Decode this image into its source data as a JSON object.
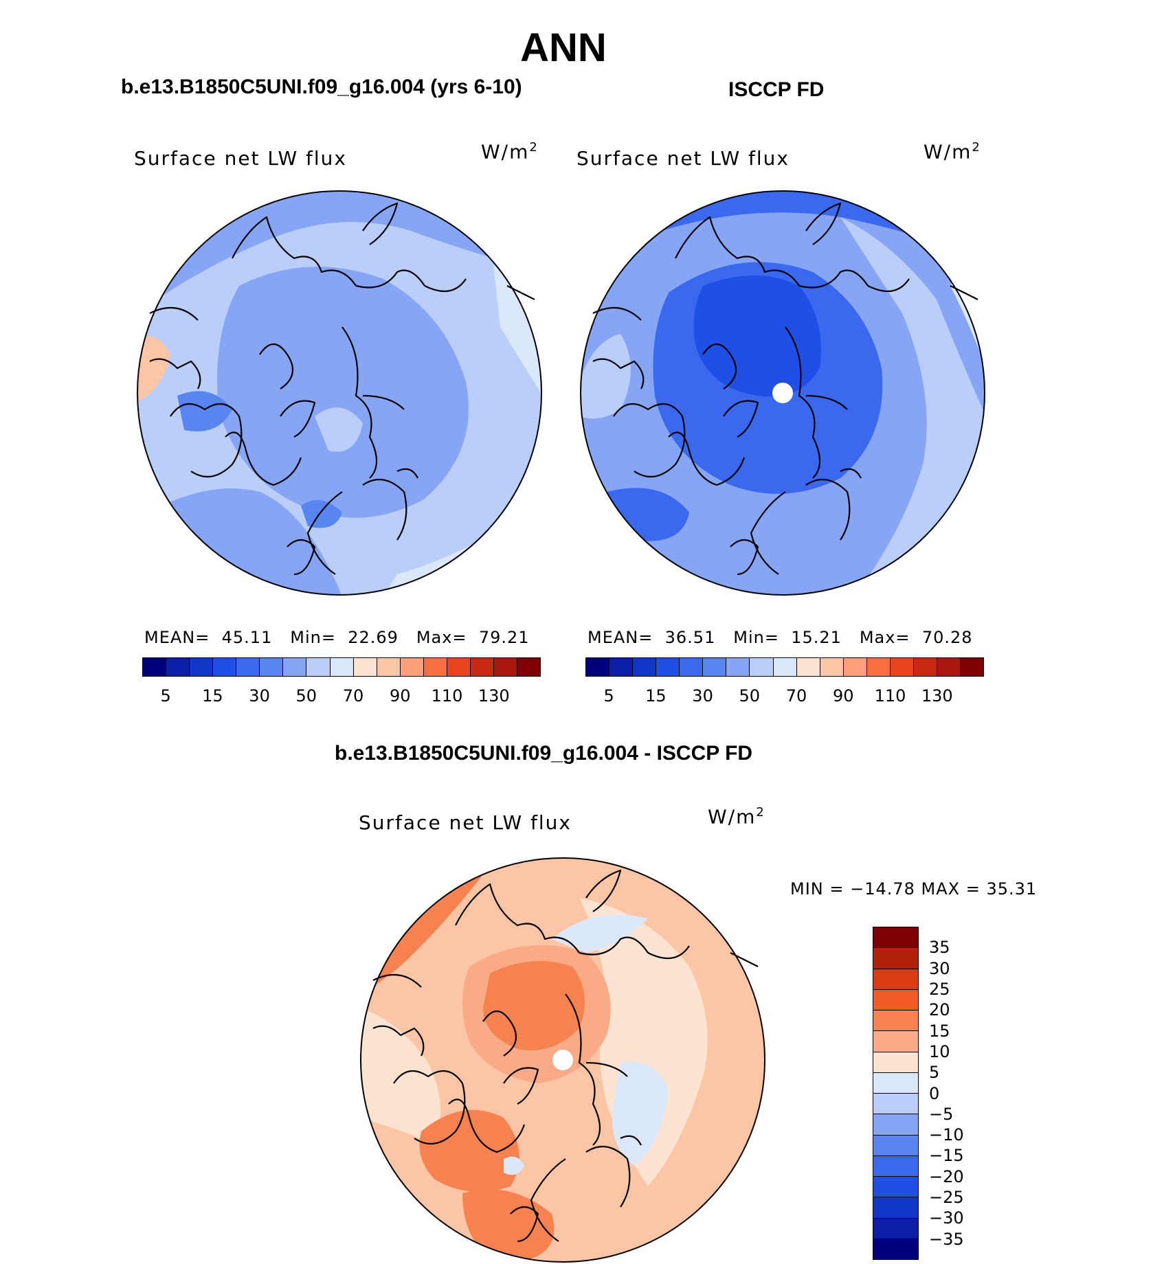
{
  "title": "ANN",
  "panels": [
    {
      "heading": "b.e13.B1850C5UNI.f09_g16.004 (yrs 6-10)",
      "variable": "Surface net LW flux",
      "units_base": "W/m",
      "units_sup": "2",
      "stats": {
        "mean_label": "MEAN=",
        "mean": "45.11",
        "min_label": "Min=",
        "min": "22.69",
        "max_label": "Max=",
        "max": "79.21"
      }
    },
    {
      "heading": "ISCCP FD",
      "variable": "Surface net LW flux",
      "units_base": "W/m",
      "units_sup": "2",
      "stats": {
        "mean_label": "MEAN=",
        "mean": "36.51",
        "min_label": "Min=",
        "min": "15.21",
        "max_label": "Max=",
        "max": "70.28"
      }
    }
  ],
  "difference": {
    "heading": "b.e13.B1850C5UNI.f09_g16.004 - ISCCP FD",
    "variable": "Surface net LW flux",
    "units_base": "W/m",
    "units_sup": "2",
    "minmax_text": "MIN = −14.78 MAX =   35.31"
  },
  "chart_data": [
    {
      "type": "heatmap",
      "projection": "north polar stereographic",
      "title": "b.e13.B1850C5UNI.f09_g16.004 (yrs 6-10)",
      "variable": "Surface net LW flux",
      "units": "W/m2",
      "mean": 45.11,
      "min": 22.69,
      "max": 79.21,
      "colorbar": {
        "levels": [
          5,
          10,
          15,
          20,
          30,
          40,
          50,
          60,
          70,
          80,
          90,
          100,
          110,
          120,
          130
        ],
        "tick_labels": [
          "5",
          "15",
          "30",
          "50",
          "70",
          "90",
          "110",
          "130"
        ],
        "colors": [
          "#00007f",
          "#0a1ea6",
          "#0f37c8",
          "#1f50e6",
          "#3a69f0",
          "#5886f0",
          "#86a6f5",
          "#b9cef9",
          "#dbe7fb",
          "#fde4d1",
          "#fcc6a6",
          "#fba07a",
          "#f7703f",
          "#e8451e",
          "#c72a10",
          "#a8180c",
          "#7f0000"
        ]
      }
    },
    {
      "type": "heatmap",
      "projection": "north polar stereographic",
      "title": "ISCCP FD",
      "variable": "Surface net LW flux",
      "units": "W/m2",
      "mean": 36.51,
      "min": 15.21,
      "max": 70.28,
      "colorbar": {
        "levels": [
          5,
          10,
          15,
          20,
          30,
          40,
          50,
          60,
          70,
          80,
          90,
          100,
          110,
          120,
          130
        ],
        "tick_labels": [
          "5",
          "15",
          "30",
          "50",
          "70",
          "90",
          "110",
          "130"
        ],
        "colors": [
          "#00007f",
          "#0a1ea6",
          "#0f37c8",
          "#1f50e6",
          "#3a69f0",
          "#5886f0",
          "#86a6f5",
          "#b9cef9",
          "#dbe7fb",
          "#fde4d1",
          "#fcc6a6",
          "#fba07a",
          "#f7703f",
          "#e8451e",
          "#c72a10",
          "#a8180c",
          "#7f0000"
        ]
      }
    },
    {
      "type": "heatmap",
      "projection": "north polar stereographic",
      "title": "b.e13.B1850C5UNI.f09_g16.004 - ISCCP FD",
      "variable": "Surface net LW flux",
      "units": "W/m2",
      "min": -14.78,
      "max": 35.31,
      "colorbar": {
        "tick_labels": [
          "35",
          "30",
          "25",
          "20",
          "15",
          "10",
          "5",
          "0",
          "−5",
          "−10",
          "−15",
          "−20",
          "−25",
          "−30",
          "−35"
        ],
        "colors": [
          "#7f0000",
          "#b2200c",
          "#dc3a12",
          "#f25a28",
          "#f5824f",
          "#f9ab85",
          "#fde4d1",
          "#dbe7fb",
          "#b9cef9",
          "#86a6f5",
          "#5886f0",
          "#3a69f0",
          "#1f50e6",
          "#0f37c8",
          "#0a1ea6",
          "#00007f"
        ]
      }
    }
  ]
}
